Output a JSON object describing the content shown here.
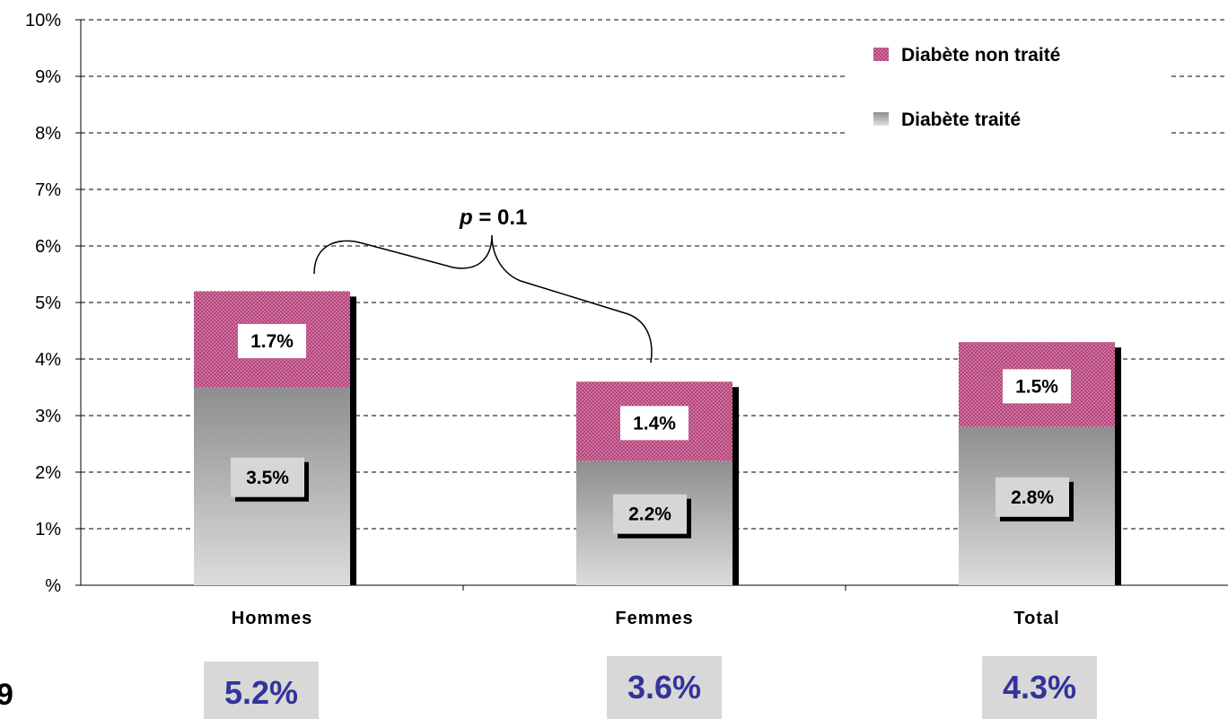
{
  "page_number": "9",
  "chart_data": {
    "type": "bar",
    "stacked": true,
    "categories": [
      "Hommes",
      "Femmes",
      "Total"
    ],
    "series": [
      {
        "name": "Diabète traité",
        "values": [
          3.5,
          2.2,
          2.8
        ],
        "labels": [
          "3.5%",
          "2.2%",
          "2.8%"
        ],
        "color": "#9a9a9a"
      },
      {
        "name": "Diabète non traité",
        "values": [
          1.7,
          1.4,
          1.5
        ],
        "labels": [
          "1.7%",
          "1.4%",
          "1.5%"
        ],
        "color": "#b03a6e"
      }
    ],
    "totals": [
      5.2,
      3.6,
      4.3
    ],
    "total_labels": [
      "5.2%",
      "3.6%",
      "4.3%"
    ],
    "y_ticks": [
      "%",
      "1%",
      "2%",
      "3%",
      "4%",
      "5%",
      "6%",
      "7%",
      "8%",
      "9%",
      "10%"
    ],
    "ylim": [
      0,
      10
    ],
    "grid": true,
    "legend_position": "top-right",
    "annotation": {
      "italic": "p",
      "text": " = 0.1"
    }
  }
}
